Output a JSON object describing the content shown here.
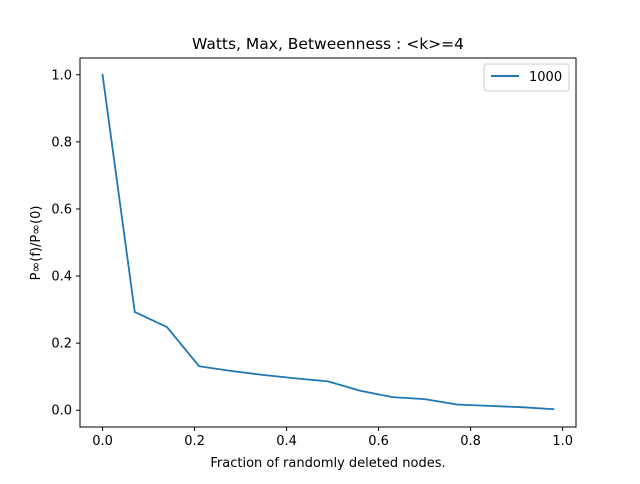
{
  "chart_data": {
    "type": "line",
    "title": "Watts, Max, Betweenness : <k>=4",
    "xlabel": "Fraction of randomly deleted nodes.",
    "ylabel": "P∞(f)/P∞(0)",
    "xlim": [
      -0.049,
      1.029
    ],
    "ylim": [
      -0.05,
      1.05
    ],
    "x_ticks": [
      0.0,
      0.2,
      0.4,
      0.6,
      0.8,
      1.0
    ],
    "x_tick_labels": [
      "0.0",
      "0.2",
      "0.4",
      "0.6",
      "0.8",
      "1.0"
    ],
    "y_ticks": [
      0.0,
      0.2,
      0.4,
      0.6,
      0.8,
      1.0
    ],
    "y_tick_labels": [
      "0.0",
      "0.2",
      "0.4",
      "0.6",
      "0.8",
      "1.0"
    ],
    "grid": false,
    "legend_position": "top-right",
    "series": [
      {
        "name": "1000",
        "color": "#1f77b4",
        "x": [
          0.0,
          0.07,
          0.14,
          0.21,
          0.28,
          0.35,
          0.42,
          0.49,
          0.56,
          0.63,
          0.7,
          0.77,
          0.84,
          0.91,
          0.98
        ],
        "y": [
          1.0,
          0.293,
          0.248,
          0.131,
          0.117,
          0.105,
          0.095,
          0.086,
          0.058,
          0.039,
          0.033,
          0.017,
          0.013,
          0.009,
          0.003
        ]
      }
    ]
  }
}
